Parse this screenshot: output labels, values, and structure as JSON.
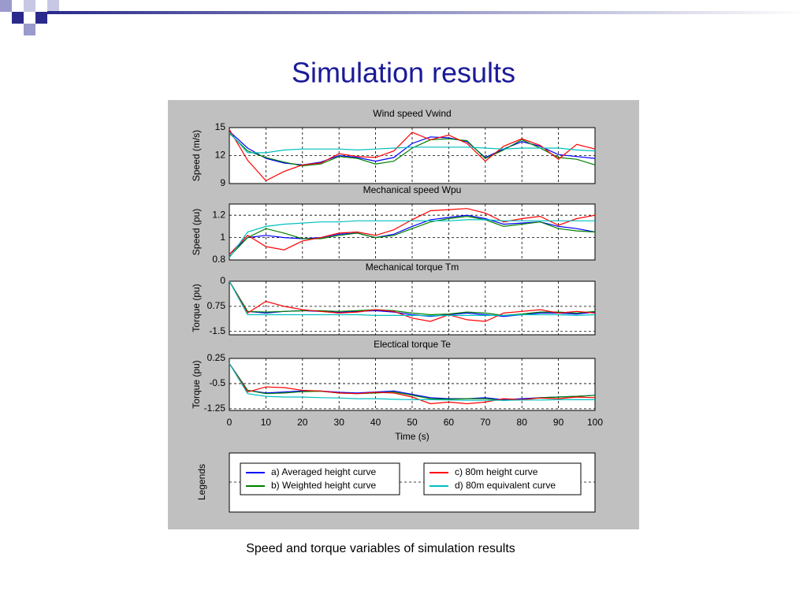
{
  "title": "Simulation results",
  "caption": "Speed and torque variables of simulation results",
  "legend": {
    "title": "Legends",
    "entries": [
      {
        "name": "a) Averaged height curve",
        "color": "#0000ff"
      },
      {
        "name": "b) Weighted height curve",
        "color": "#008000"
      },
      {
        "name": "c) 80m height curve",
        "color": "#ff0000"
      },
      {
        "name": "d) 80m equivalent curve",
        "color": "#00bfbf"
      }
    ]
  },
  "chart_data": [
    {
      "type": "line",
      "title": "Wind speed Vwind",
      "ylabel": "Speed (m/s)",
      "x": [
        0,
        5,
        10,
        15,
        20,
        25,
        30,
        35,
        40,
        45,
        50,
        55,
        60,
        65,
        70,
        75,
        80,
        85,
        90,
        95,
        100
      ],
      "xlim": [
        0,
        100
      ],
      "ylim": [
        9,
        15
      ],
      "yticks": [
        9,
        12,
        15
      ],
      "grid": true,
      "series": [
        {
          "values": [
            14.6,
            12.8,
            11.7,
            11.2,
            11.0,
            11.3,
            12.0,
            11.8,
            11.4,
            11.8,
            13.3,
            14.0,
            13.9,
            13.5,
            11.8,
            12.7,
            13.5,
            13.0,
            12.1,
            11.9,
            11.7
          ]
        },
        {
          "values": [
            14.4,
            12.5,
            11.8,
            11.3,
            10.9,
            11.1,
            11.9,
            11.7,
            11.1,
            11.4,
            12.8,
            13.7,
            13.8,
            13.6,
            11.7,
            12.6,
            13.7,
            12.8,
            11.8,
            11.6,
            11.0
          ]
        },
        {
          "values": [
            14.8,
            11.5,
            9.3,
            10.3,
            11.0,
            11.2,
            12.2,
            11.9,
            11.8,
            12.5,
            14.5,
            13.7,
            14.2,
            13.3,
            11.4,
            13.0,
            13.8,
            13.1,
            11.6,
            13.2,
            12.7
          ]
        },
        {
          "values": [
            14.5,
            12.3,
            12.3,
            12.6,
            12.7,
            12.7,
            12.7,
            12.6,
            12.7,
            12.8,
            12.9,
            12.9,
            12.9,
            12.9,
            12.8,
            12.7,
            12.8,
            12.8,
            12.8,
            12.6,
            12.5
          ]
        }
      ]
    },
    {
      "type": "line",
      "title": "Mechanical speed Wpu",
      "ylabel": "Speed (pu)",
      "x": [
        0,
        5,
        10,
        15,
        20,
        25,
        30,
        35,
        40,
        45,
        50,
        55,
        60,
        65,
        70,
        75,
        80,
        85,
        90,
        95,
        100
      ],
      "xlim": [
        0,
        100
      ],
      "ylim": [
        0.8,
        1.3
      ],
      "yticks": [
        0.8,
        1,
        1.2
      ],
      "grid": true,
      "series": [
        {
          "values": [
            0.85,
            1.0,
            1.02,
            1.0,
            0.99,
            1.0,
            1.03,
            1.04,
            1.0,
            1.03,
            1.1,
            1.16,
            1.18,
            1.2,
            1.17,
            1.12,
            1.13,
            1.14,
            1.1,
            1.08,
            1.05
          ]
        },
        {
          "values": [
            0.83,
            1.0,
            1.08,
            1.04,
            0.99,
            0.99,
            1.02,
            1.04,
            1.0,
            1.02,
            1.08,
            1.14,
            1.17,
            1.19,
            1.16,
            1.1,
            1.12,
            1.14,
            1.08,
            1.06,
            1.05
          ]
        },
        {
          "values": [
            0.85,
            1.02,
            0.92,
            0.89,
            0.97,
            1.0,
            1.04,
            1.05,
            1.02,
            1.07,
            1.16,
            1.24,
            1.25,
            1.26,
            1.22,
            1.14,
            1.17,
            1.19,
            1.11,
            1.17,
            1.2
          ]
        },
        {
          "values": [
            0.82,
            1.05,
            1.1,
            1.12,
            1.13,
            1.14,
            1.14,
            1.15,
            1.15,
            1.15,
            1.15,
            1.15,
            1.15,
            1.16,
            1.16,
            1.15,
            1.15,
            1.15,
            1.15,
            1.15,
            1.15
          ]
        }
      ]
    },
    {
      "type": "line",
      "title": "Mechanical torque Tm",
      "ylabel": "Torque (pu)",
      "x": [
        0,
        5,
        10,
        15,
        20,
        25,
        30,
        35,
        40,
        45,
        50,
        55,
        60,
        65,
        70,
        75,
        80,
        85,
        90,
        95,
        100
      ],
      "xlim": [
        0,
        100
      ],
      "ylim": [
        -1.6,
        0
      ],
      "yticks": [
        0,
        {
          "value": -0.75,
          "label": "0.75"
        },
        -1.5
      ],
      "grid": true,
      "series": [
        {
          "values": [
            0,
            -0.9,
            -0.95,
            -0.9,
            -0.88,
            -0.9,
            -0.93,
            -0.9,
            -0.88,
            -0.92,
            -1.0,
            -1.05,
            -1.0,
            -0.95,
            -1.0,
            -1.05,
            -1.0,
            -0.95,
            -0.95,
            -0.98,
            -0.92
          ]
        },
        {
          "values": [
            0,
            -0.9,
            -0.92,
            -0.9,
            -0.88,
            -0.88,
            -0.9,
            -0.88,
            -0.85,
            -0.88,
            -0.95,
            -1.0,
            -0.98,
            -0.92,
            -0.95,
            -1.02,
            -0.98,
            -0.92,
            -0.92,
            -0.95,
            -0.9
          ]
        },
        {
          "values": [
            0,
            -0.95,
            -0.6,
            -0.75,
            -0.85,
            -0.9,
            -0.95,
            -0.92,
            -0.85,
            -0.9,
            -1.1,
            -1.2,
            -1.0,
            -1.15,
            -1.2,
            -0.95,
            -0.9,
            -0.85,
            -0.95,
            -0.9,
            -0.95
          ]
        },
        {
          "values": [
            0,
            -1.0,
            -1.0,
            -1.0,
            -1.0,
            -1.0,
            -1.0,
            -1.0,
            -1.02,
            -1.02,
            -1.02,
            -1.03,
            -1.02,
            -1.02,
            -1.02,
            -1.02,
            -1.0,
            -1.0,
            -1.0,
            -1.02,
            -1.0
          ]
        }
      ]
    },
    {
      "type": "line",
      "title": "Electical torque Te",
      "ylabel": "Torque (pu)",
      "xlabel": "Time (s)",
      "x": [
        0,
        5,
        10,
        15,
        20,
        25,
        30,
        35,
        40,
        45,
        50,
        55,
        60,
        65,
        70,
        75,
        80,
        85,
        90,
        95,
        100
      ],
      "xlim": [
        0,
        100
      ],
      "xticks": [
        0,
        10,
        20,
        30,
        40,
        50,
        60,
        70,
        80,
        90,
        100
      ],
      "ylim": [
        -1.3,
        0.25
      ],
      "yticks": [
        0.25,
        -0.5,
        -1.25
      ],
      "grid": true,
      "series": [
        {
          "values": [
            0.1,
            -0.7,
            -0.78,
            -0.75,
            -0.72,
            -0.72,
            -0.76,
            -0.78,
            -0.75,
            -0.72,
            -0.82,
            -0.92,
            -0.95,
            -0.95,
            -0.92,
            -0.98,
            -0.95,
            -0.92,
            -0.9,
            -0.88,
            -0.85
          ]
        },
        {
          "values": [
            0.1,
            -0.7,
            -0.8,
            -0.78,
            -0.74,
            -0.73,
            -0.78,
            -0.8,
            -0.78,
            -0.75,
            -0.85,
            -0.95,
            -0.97,
            -0.95,
            -0.95,
            -1.0,
            -0.98,
            -0.92,
            -0.9,
            -0.88,
            -0.85
          ]
        },
        {
          "values": [
            0.1,
            -0.75,
            -0.6,
            -0.62,
            -0.7,
            -0.72,
            -0.78,
            -0.8,
            -0.76,
            -0.78,
            -0.9,
            -1.1,
            -1.05,
            -1.1,
            -1.05,
            -0.95,
            -0.98,
            -0.93,
            -0.95,
            -0.9,
            -0.92
          ]
        },
        {
          "values": [
            0.1,
            -0.8,
            -0.88,
            -0.9,
            -0.9,
            -0.92,
            -0.93,
            -0.95,
            -0.95,
            -0.97,
            -0.98,
            -0.98,
            -0.99,
            -1.0,
            -1.0,
            -1.0,
            -0.99,
            -0.99,
            -0.98,
            -0.98,
            -0.98
          ]
        }
      ]
    }
  ]
}
